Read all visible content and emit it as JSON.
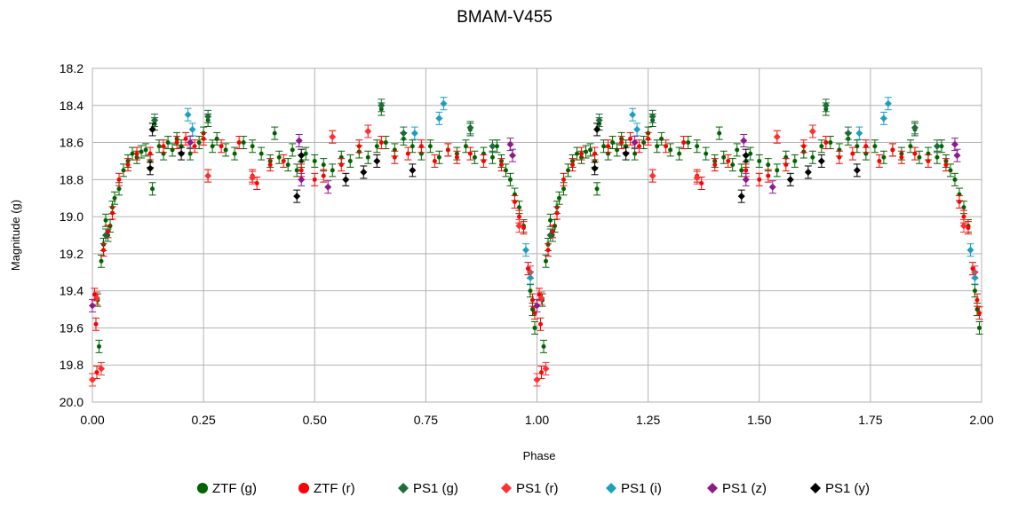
{
  "chart_data": {
    "type": "scatter",
    "title": "BMAM-V455",
    "xlabel": "Phase",
    "ylabel": "Magnitude (g)",
    "xlim": [
      0.0,
      2.0
    ],
    "ylim": [
      18.2,
      20.0
    ],
    "y_inverted": true,
    "grid": true,
    "legend_placement": "bottom",
    "xticks": [
      "0.00",
      "0.25",
      "0.50",
      "0.75",
      "1.00",
      "1.25",
      "1.50",
      "1.75",
      "2.00"
    ],
    "yticks": [
      "18.2",
      "18.4",
      "18.6",
      "18.8",
      "19.0",
      "19.2",
      "19.4",
      "19.6",
      "19.8",
      "20.0"
    ],
    "series": [
      {
        "name": "ZTF (g)",
        "marker": "circle",
        "color": "#006400",
        "points": [
          [
            0.012,
            19.45
          ],
          [
            0.015,
            19.7
          ],
          [
            0.02,
            19.24
          ],
          [
            0.025,
            19.15
          ],
          [
            0.03,
            19.02
          ],
          [
            0.035,
            19.1
          ],
          [
            0.04,
            19.05
          ],
          [
            0.045,
            18.95
          ],
          [
            0.05,
            18.9
          ],
          [
            0.06,
            18.85
          ],
          [
            0.07,
            18.75
          ],
          [
            0.08,
            18.7
          ],
          [
            0.09,
            18.66
          ],
          [
            0.1,
            18.68
          ],
          [
            0.11,
            18.65
          ],
          [
            0.12,
            18.64
          ],
          [
            0.13,
            18.7
          ],
          [
            0.135,
            18.85
          ],
          [
            0.14,
            18.5
          ],
          [
            0.15,
            18.62
          ],
          [
            0.16,
            18.66
          ],
          [
            0.17,
            18.6
          ],
          [
            0.18,
            18.64
          ],
          [
            0.19,
            18.58
          ],
          [
            0.2,
            18.62
          ],
          [
            0.22,
            18.66
          ],
          [
            0.24,
            18.6
          ],
          [
            0.25,
            18.55
          ],
          [
            0.26,
            18.48
          ],
          [
            0.27,
            18.62
          ],
          [
            0.28,
            18.58
          ],
          [
            0.3,
            18.64
          ],
          [
            0.32,
            18.66
          ],
          [
            0.34,
            18.6
          ],
          [
            0.36,
            18.62
          ],
          [
            0.38,
            18.66
          ],
          [
            0.4,
            18.7
          ],
          [
            0.41,
            18.55
          ],
          [
            0.42,
            18.68
          ],
          [
            0.44,
            18.72
          ],
          [
            0.45,
            18.64
          ],
          [
            0.46,
            18.75
          ],
          [
            0.47,
            18.7
          ],
          [
            0.48,
            18.66
          ],
          [
            0.5,
            18.7
          ],
          [
            0.52,
            18.72
          ],
          [
            0.54,
            18.75
          ],
          [
            0.56,
            18.68
          ],
          [
            0.58,
            18.7
          ],
          [
            0.6,
            18.65
          ],
          [
            0.62,
            18.68
          ],
          [
            0.64,
            18.62
          ],
          [
            0.65,
            18.42
          ],
          [
            0.66,
            18.6
          ],
          [
            0.68,
            18.64
          ],
          [
            0.7,
            18.58
          ],
          [
            0.72,
            18.62
          ],
          [
            0.74,
            18.66
          ],
          [
            0.76,
            18.62
          ],
          [
            0.78,
            18.68
          ],
          [
            0.8,
            18.64
          ],
          [
            0.82,
            18.66
          ],
          [
            0.84,
            18.62
          ],
          [
            0.85,
            18.53
          ],
          [
            0.86,
            18.68
          ],
          [
            0.88,
            18.66
          ],
          [
            0.9,
            18.68
          ],
          [
            0.91,
            18.62
          ],
          [
            0.92,
            18.7
          ],
          [
            0.93,
            18.75
          ],
          [
            0.94,
            18.8
          ],
          [
            0.95,
            18.88
          ],
          [
            0.96,
            18.95
          ],
          [
            0.97,
            19.05
          ],
          [
            0.985,
            19.4
          ],
          [
            0.99,
            19.5
          ],
          [
            0.995,
            19.6
          ]
        ]
      },
      {
        "name": "ZTF (r)",
        "marker": "circle",
        "color": "#ff0000",
        "points": [
          [
            0.005,
            19.42
          ],
          [
            0.008,
            19.58
          ],
          [
            0.01,
            19.84
          ],
          [
            0.025,
            19.18
          ],
          [
            0.035,
            19.08
          ],
          [
            0.045,
            18.98
          ],
          [
            0.06,
            18.8
          ],
          [
            0.08,
            18.72
          ],
          [
            0.1,
            18.66
          ],
          [
            0.13,
            18.66
          ],
          [
            0.16,
            18.62
          ],
          [
            0.19,
            18.6
          ],
          [
            0.21,
            18.58
          ],
          [
            0.23,
            18.62
          ],
          [
            0.25,
            18.58
          ],
          [
            0.26,
            18.78
          ],
          [
            0.29,
            18.62
          ],
          [
            0.33,
            18.6
          ],
          [
            0.36,
            18.78
          ],
          [
            0.37,
            18.82
          ],
          [
            0.4,
            18.72
          ],
          [
            0.43,
            18.7
          ],
          [
            0.47,
            18.75
          ],
          [
            0.5,
            18.8
          ],
          [
            0.52,
            18.78
          ],
          [
            0.54,
            18.57
          ],
          [
            0.56,
            18.72
          ],
          [
            0.6,
            18.62
          ],
          [
            0.62,
            18.54
          ],
          [
            0.65,
            18.6
          ],
          [
            0.68,
            18.68
          ],
          [
            0.71,
            18.66
          ],
          [
            0.74,
            18.62
          ],
          [
            0.77,
            18.7
          ],
          [
            0.8,
            18.64
          ],
          [
            0.82,
            18.68
          ],
          [
            0.85,
            18.66
          ],
          [
            0.88,
            18.7
          ],
          [
            0.92,
            18.72
          ],
          [
            0.95,
            18.92
          ],
          [
            0.96,
            19.0
          ],
          [
            0.97,
            19.06
          ],
          [
            0.98,
            19.28
          ],
          [
            0.99,
            19.45
          ],
          [
            0.995,
            19.52
          ]
        ]
      },
      {
        "name": "PS1 (g)",
        "marker": "diamond",
        "color": "#1e6b3c",
        "points": [
          [
            0.03,
            19.1
          ],
          [
            0.14,
            18.48
          ],
          [
            0.26,
            18.46
          ],
          [
            0.65,
            18.4
          ],
          [
            0.7,
            18.55
          ],
          [
            0.85,
            18.52
          ],
          [
            0.9,
            18.62
          ]
        ]
      },
      {
        "name": "PS1 (r)",
        "marker": "diamond",
        "color": "#ff3030",
        "points": [
          [
            0.0,
            19.88
          ],
          [
            0.02,
            19.82
          ],
          [
            0.01,
            19.44
          ],
          [
            0.26,
            18.78
          ],
          [
            0.36,
            18.79
          ],
          [
            0.54,
            18.57
          ],
          [
            0.62,
            18.54
          ],
          [
            0.96,
            19.05
          ],
          [
            0.985,
            19.3
          ]
        ]
      },
      {
        "name": "PS1 (i)",
        "marker": "diamond",
        "color": "#1ca0c0",
        "points": [
          [
            0.215,
            18.45
          ],
          [
            0.225,
            18.53
          ],
          [
            0.78,
            18.47
          ],
          [
            0.79,
            18.39
          ],
          [
            0.725,
            18.55
          ],
          [
            0.975,
            19.18
          ],
          [
            0.985,
            19.33
          ]
        ]
      },
      {
        "name": "PS1 (z)",
        "marker": "diamond",
        "color": "#8b1a8b",
        "points": [
          [
            0.0,
            19.48
          ],
          [
            0.22,
            18.6
          ],
          [
            0.465,
            18.59
          ],
          [
            0.53,
            18.84
          ],
          [
            0.94,
            18.61
          ],
          [
            0.945,
            18.67
          ],
          [
            0.47,
            18.8
          ]
        ]
      },
      {
        "name": "PS1 (y)",
        "marker": "diamond",
        "color": "#000000",
        "points": [
          [
            0.13,
            18.74
          ],
          [
            0.135,
            18.53
          ],
          [
            0.2,
            18.66
          ],
          [
            0.46,
            18.89
          ],
          [
            0.47,
            18.67
          ],
          [
            0.57,
            18.8
          ],
          [
            0.61,
            18.76
          ],
          [
            0.64,
            18.7
          ],
          [
            0.72,
            18.75
          ]
        ]
      }
    ]
  }
}
